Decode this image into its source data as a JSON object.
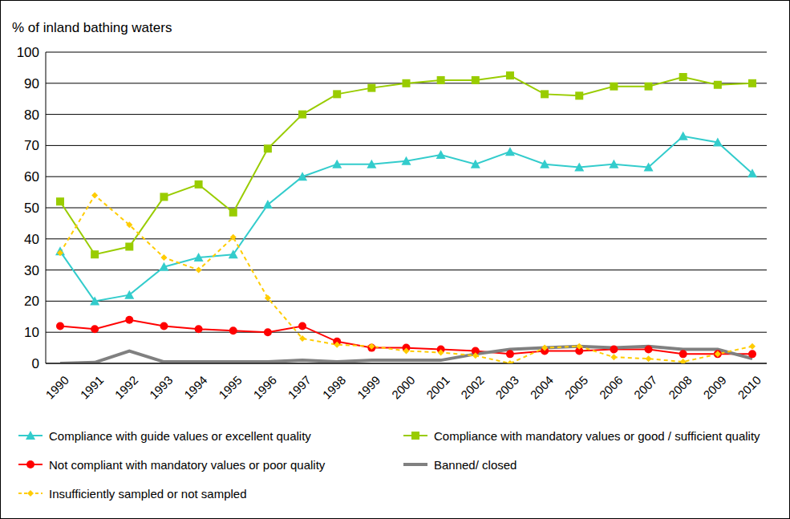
{
  "chart_data": {
    "type": "line",
    "y_label": "% of inland bathing waters",
    "categories": [
      "1990",
      "1991",
      "1992",
      "1993",
      "1994",
      "1995",
      "1996",
      "1997",
      "1998",
      "1999",
      "2000",
      "2001",
      "2002",
      "2003",
      "2004",
      "2005",
      "2006",
      "2007",
      "2008",
      "2009",
      "2010"
    ],
    "ylim": [
      0,
      100
    ],
    "yticks": [
      0,
      10,
      20,
      30,
      40,
      50,
      60,
      70,
      80,
      90,
      100
    ],
    "grid": true,
    "legend": "bottom",
    "series": [
      {
        "name": "Compliance with guide values or excellent quality",
        "color": "#33cccc",
        "marker": "triangle",
        "line_style": "solid",
        "values": [
          36,
          20,
          22,
          31,
          34,
          35,
          51,
          60,
          64,
          64,
          65,
          67,
          64,
          68,
          64,
          63,
          64,
          63,
          73,
          71,
          61
        ]
      },
      {
        "name": "Compliance with mandatory values or good / sufficient quality",
        "color": "#99cc00",
        "marker": "square",
        "line_style": "solid",
        "values": [
          52,
          35,
          37.5,
          53.5,
          57.5,
          48.5,
          69,
          80,
          86.5,
          88.5,
          90,
          91,
          91,
          92.5,
          86.5,
          86,
          89,
          89,
          92,
          89.5,
          90
        ]
      },
      {
        "name": "Not compliant with mandatory values or poor quality",
        "color": "#ff0000",
        "marker": "circle",
        "line_style": "solid",
        "values": [
          12,
          11,
          14,
          12,
          11,
          10.5,
          10,
          12,
          7,
          5,
          5,
          4.5,
          4,
          3,
          4,
          4,
          4.5,
          4.5,
          3,
          3,
          3
        ]
      },
      {
        "name": "Banned/ closed",
        "color": "#808080",
        "marker": "none",
        "line_style": "solid",
        "values": [
          0,
          0.3,
          4,
          0.5,
          0.5,
          0.5,
          0.5,
          1,
          0.5,
          1,
          1,
          1,
          3,
          4.5,
          5,
          5.5,
          5,
          5.5,
          4.5,
          4.5,
          1.5
        ]
      },
      {
        "name": "Insufficiently sampled or not sampled",
        "color": "#ffcc00",
        "marker": "diamond",
        "line_style": "dashed",
        "values": [
          35.5,
          54,
          44.5,
          34,
          30,
          40.5,
          21,
          8,
          6,
          5.5,
          4,
          3.5,
          2.5,
          0,
          5,
          5.5,
          2,
          1.5,
          0.5,
          3,
          5.5
        ]
      }
    ]
  }
}
